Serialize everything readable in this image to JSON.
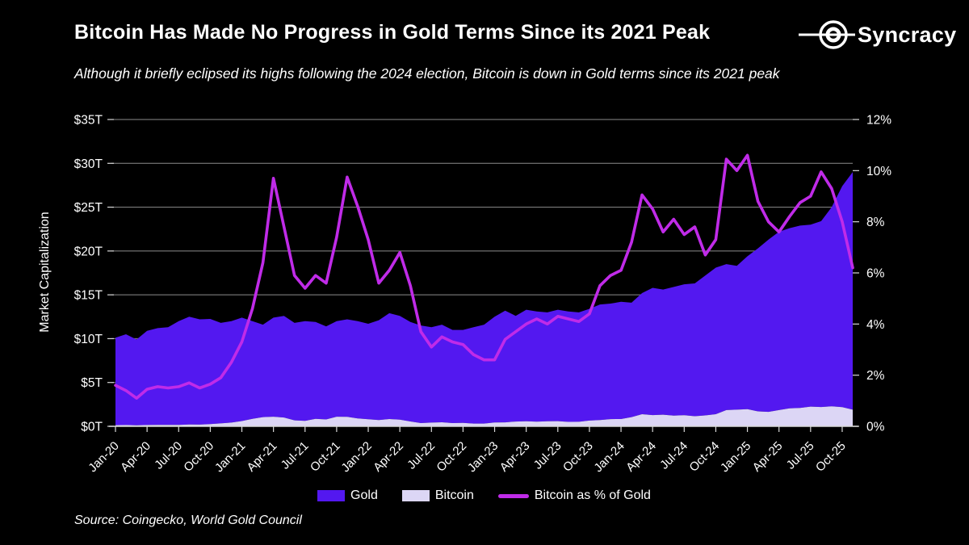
{
  "header": {
    "title": "Bitcoin Has Made No Progress in Gold Terms Since its 2021 Peak",
    "subtitle": "Although it briefly eclipsed its highs following the 2024 election, Bitcoin is down in Gold terms since its 2021 peak",
    "brand": "Syncracy"
  },
  "footer": {
    "source": "Source: Coingecko, World Gold Council"
  },
  "colors": {
    "background": "#000000",
    "text": "#ffffff",
    "gridline": "#8c8c8c",
    "axis": "#d9d9d9",
    "gold_area": "#5318f0",
    "bitcoin_area": "#dcd6f5",
    "pct_line": "#c02be8"
  },
  "chart_data": {
    "type": "area",
    "title": "Bitcoin Has Made No Progress in Gold Terms Since its 2021 Peak",
    "y_left_label": "Market Capitalization",
    "y_left_unit": "T",
    "y_left_range": [
      0,
      35
    ],
    "y_left_tick_labels": [
      "$0T",
      "$5T",
      "$10T",
      "$15T",
      "$20T",
      "$25T",
      "$30T",
      "$35T"
    ],
    "y_right_range": [
      0,
      12
    ],
    "y_right_tick_labels": [
      "0%",
      "2%",
      "4%",
      "6%",
      "8%",
      "10%",
      "12%"
    ],
    "grid": true,
    "legend_position": "bottom",
    "x_tick_labels": [
      "Jan-20",
      "Apr-20",
      "Jul-20",
      "Oct-20",
      "Jan-21",
      "Apr-21",
      "Jul-21",
      "Oct-21",
      "Jan-22",
      "Apr-22",
      "Jul-22",
      "Oct-22",
      "Jan-23",
      "Apr-23",
      "Jul-23",
      "Oct-23",
      "Jan-24",
      "Apr-24",
      "Jul-24",
      "Oct-24",
      "Jan-25",
      "Apr-25",
      "Jul-25",
      "Oct-25"
    ],
    "x_months": [
      "Jan-20",
      "Feb-20",
      "Mar-20",
      "Apr-20",
      "May-20",
      "Jun-20",
      "Jul-20",
      "Aug-20",
      "Sep-20",
      "Oct-20",
      "Nov-20",
      "Dec-20",
      "Jan-21",
      "Feb-21",
      "Mar-21",
      "Apr-21",
      "May-21",
      "Jun-21",
      "Jul-21",
      "Aug-21",
      "Sep-21",
      "Oct-21",
      "Nov-21",
      "Dec-21",
      "Jan-22",
      "Feb-22",
      "Mar-22",
      "Apr-22",
      "May-22",
      "Jun-22",
      "Jul-22",
      "Aug-22",
      "Sep-22",
      "Oct-22",
      "Nov-22",
      "Dec-22",
      "Jan-23",
      "Feb-23",
      "Mar-23",
      "Apr-23",
      "May-23",
      "Jun-23",
      "Jul-23",
      "Aug-23",
      "Sep-23",
      "Oct-23",
      "Nov-23",
      "Dec-23",
      "Jan-24",
      "Feb-24",
      "Mar-24",
      "Apr-24",
      "May-24",
      "Jun-24",
      "Jul-24",
      "Aug-24",
      "Sep-24",
      "Oct-24",
      "Nov-24",
      "Dec-24",
      "Jan-25",
      "Feb-25",
      "Mar-25",
      "Apr-25",
      "May-25",
      "Jun-25",
      "Jul-25",
      "Aug-25",
      "Sep-25",
      "Oct-25",
      "Nov-25"
    ],
    "series": [
      {
        "name": "Bitcoin",
        "kind": "area-stacked-bottom",
        "axis": "left",
        "color": "#dcd6f5",
        "values": [
          0.13,
          0.15,
          0.11,
          0.15,
          0.17,
          0.17,
          0.17,
          0.21,
          0.19,
          0.25,
          0.33,
          0.42,
          0.6,
          0.85,
          1.05,
          1.1,
          1.0,
          0.68,
          0.62,
          0.85,
          0.78,
          1.1,
          1.08,
          0.9,
          0.8,
          0.72,
          0.83,
          0.76,
          0.55,
          0.37,
          0.42,
          0.46,
          0.37,
          0.39,
          0.31,
          0.31,
          0.44,
          0.45,
          0.54,
          0.57,
          0.53,
          0.57,
          0.59,
          0.51,
          0.52,
          0.65,
          0.72,
          0.82,
          0.83,
          1.05,
          1.38,
          1.28,
          1.33,
          1.22,
          1.26,
          1.15,
          1.24,
          1.38,
          1.85,
          1.9,
          1.95,
          1.7,
          1.65,
          1.85,
          2.05,
          2.1,
          2.25,
          2.2,
          2.28,
          2.18,
          1.9
        ]
      },
      {
        "name": "Gold",
        "kind": "area-stacked-top",
        "axis": "left",
        "color": "#5318f0",
        "values": [
          9.97,
          10.35,
          9.79,
          10.75,
          11.03,
          11.13,
          11.83,
          12.29,
          12.01,
          12.0,
          11.47,
          11.58,
          11.8,
          11.15,
          10.55,
          11.3,
          11.6,
          11.12,
          11.38,
          11.05,
          10.62,
          10.9,
          11.12,
          11.1,
          10.9,
          11.38,
          12.07,
          11.84,
          11.35,
          11.13,
          10.88,
          11.14,
          10.63,
          10.61,
          10.99,
          11.29,
          12.06,
          12.75,
          12.06,
          12.73,
          12.57,
          12.43,
          12.71,
          12.59,
          12.48,
          12.75,
          13.18,
          13.18,
          13.37,
          13.05,
          13.82,
          14.52,
          14.27,
          14.68,
          14.94,
          15.15,
          15.96,
          16.72,
          16.65,
          16.4,
          17.45,
          18.6,
          19.65,
          20.35,
          20.55,
          20.8,
          20.75,
          21.2,
          22.72,
          25.22,
          27.1
        ]
      },
      {
        "name": "Bitcoin as % of Gold",
        "kind": "line",
        "axis": "right",
        "color": "#c02be8",
        "values": [
          1.6,
          1.4,
          1.1,
          1.45,
          1.55,
          1.5,
          1.55,
          1.7,
          1.5,
          1.65,
          1.9,
          2.5,
          3.3,
          4.6,
          6.4,
          9.7,
          7.8,
          5.9,
          5.4,
          5.9,
          5.6,
          7.4,
          9.75,
          8.6,
          7.3,
          5.6,
          6.1,
          6.8,
          5.5,
          3.7,
          3.1,
          3.5,
          3.3,
          3.2,
          2.8,
          2.6,
          2.6,
          3.4,
          3.7,
          4.0,
          4.2,
          4.0,
          4.3,
          4.2,
          4.1,
          4.4,
          5.5,
          5.9,
          6.1,
          7.2,
          9.05,
          8.5,
          7.6,
          8.1,
          7.5,
          7.8,
          6.7,
          7.3,
          10.45,
          10.0,
          10.6,
          8.8,
          8.0,
          7.6,
          8.2,
          8.75,
          9.0,
          9.95,
          9.3,
          8.0,
          6.2
        ]
      }
    ]
  }
}
